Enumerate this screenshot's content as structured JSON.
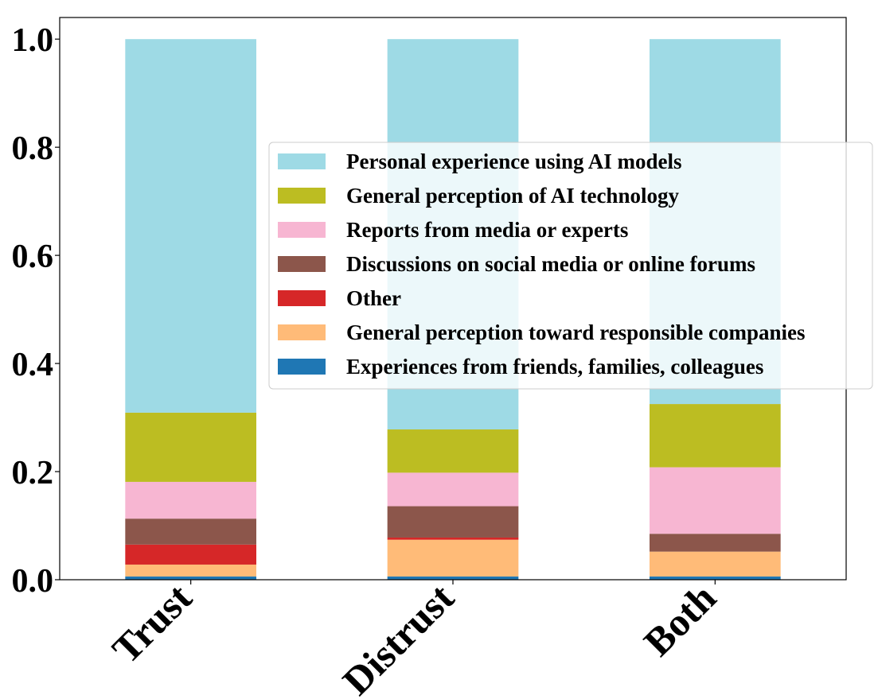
{
  "chart_data": {
    "type": "bar",
    "stacked": true,
    "categories": [
      "Trust",
      "Distrust",
      "Both"
    ],
    "ylim": [
      0,
      1.04
    ],
    "yticks": [
      "0.0",
      "0.2",
      "0.4",
      "0.6",
      "0.8",
      "1.0"
    ],
    "ytick_values": [
      0,
      0.2,
      0.4,
      0.6,
      0.8,
      1.0
    ],
    "grid": false,
    "legend_position": "center-right",
    "series": [
      {
        "name": "Experiences from friends, families, colleagues",
        "color": "#1f77b4",
        "values": [
          0.006,
          0.006,
          0.006
        ]
      },
      {
        "name": "General perception toward responsible companies",
        "color": "#ffbb78",
        "values": [
          0.022,
          0.068,
          0.046
        ]
      },
      {
        "name": "Other",
        "color": "#d62728",
        "values": [
          0.037,
          0.004,
          0.0
        ]
      },
      {
        "name": "Discussions on social media or online forums",
        "color": "#8c564b",
        "values": [
          0.048,
          0.058,
          0.033
        ]
      },
      {
        "name": "Reports from media or experts",
        "color": "#f7b6d2",
        "values": [
          0.068,
          0.062,
          0.123
        ]
      },
      {
        "name": "General perception of AI technology",
        "color": "#bcbd22",
        "values": [
          0.128,
          0.08,
          0.117
        ]
      },
      {
        "name": "Personal experience using AI models",
        "color": "#9edae5",
        "values": [
          0.691,
          0.722,
          0.675
        ]
      }
    ]
  }
}
